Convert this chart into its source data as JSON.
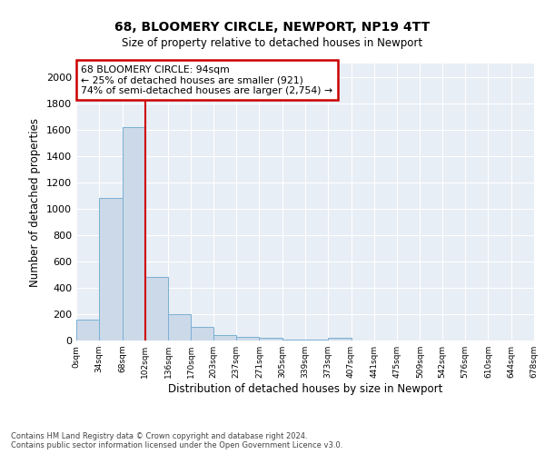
{
  "title": "68, BLOOMERY CIRCLE, NEWPORT, NP19 4TT",
  "subtitle": "Size of property relative to detached houses in Newport",
  "xlabel": "Distribution of detached houses by size in Newport",
  "ylabel": "Number of detached properties",
  "bar_color": "#ccd9e8",
  "bar_edge_color": "#7ab0d4",
  "background_color": "#e8eef5",
  "grid_color": "#ffffff",
  "property_line_x": 102,
  "annotation_title": "68 BLOOMERY CIRCLE: 94sqm",
  "annotation_line1": "← 25% of detached houses are smaller (921)",
  "annotation_line2": "74% of semi-detached houses are larger (2,754) →",
  "annotation_box_color": "#cc0000",
  "ylim": [
    0,
    2100
  ],
  "yticks": [
    0,
    200,
    400,
    600,
    800,
    1000,
    1200,
    1400,
    1600,
    1800,
    2000
  ],
  "bin_edges": [
    0,
    34,
    68,
    102,
    136,
    170,
    203,
    237,
    271,
    305,
    339,
    373,
    407,
    441,
    475,
    509,
    542,
    576,
    610,
    644,
    678
  ],
  "bar_heights": [
    160,
    1080,
    1620,
    480,
    200,
    100,
    42,
    28,
    18,
    10,
    10,
    20,
    0,
    0,
    0,
    0,
    0,
    0,
    0,
    0
  ],
  "tick_labels": [
    "0sqm",
    "34sqm",
    "68sqm",
    "102sqm",
    "136sqm",
    "170sqm",
    "203sqm",
    "237sqm",
    "271sqm",
    "305sqm",
    "339sqm",
    "373sqm",
    "407sqm",
    "441sqm",
    "475sqm",
    "509sqm",
    "542sqm",
    "576sqm",
    "610sqm",
    "644sqm",
    "678sqm"
  ],
  "footer_text": "Contains HM Land Registry data © Crown copyright and database right 2024.\nContains public sector information licensed under the Open Government Licence v3.0.",
  "annotation_box_facecolor": "#ffffff",
  "fig_width": 6.0,
  "fig_height": 5.0,
  "dpi": 100
}
